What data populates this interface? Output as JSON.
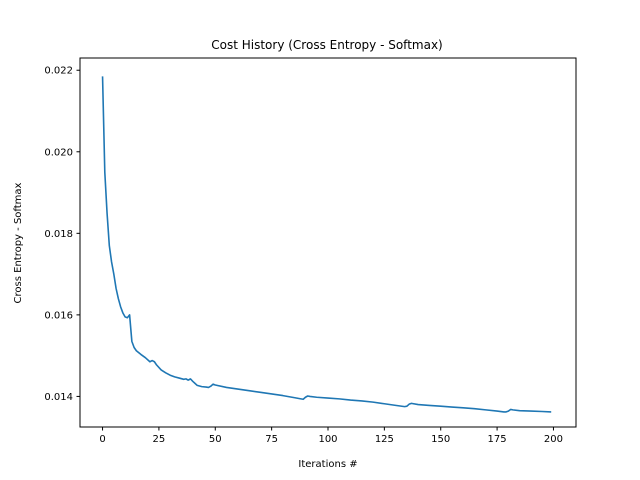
{
  "chart_data": {
    "type": "line",
    "title": "Cost History (Cross Entropy - Softmax)",
    "xlabel": "Iterations #",
    "ylabel": "Cross Entropy - Softmax",
    "xlim": [
      -10,
      210
    ],
    "ylim": [
      0.01325,
      0.0223
    ],
    "grid": false,
    "x_ticks": [
      0,
      25,
      50,
      75,
      100,
      125,
      150,
      175,
      200
    ],
    "y_ticks": [
      0.014,
      0.016,
      0.018,
      0.02,
      0.022
    ],
    "x_tick_labels": [
      "0",
      "25",
      "50",
      "75",
      "100",
      "125",
      "150",
      "175",
      "200"
    ],
    "y_tick_labels": [
      "0.014",
      "0.016",
      "0.018",
      "0.020",
      "0.022"
    ],
    "series": [
      {
        "color": "#1f77b4",
        "x": [
          0,
          1,
          2,
          3,
          4,
          5,
          6,
          7,
          8,
          9,
          10,
          11,
          12,
          13,
          14,
          15,
          17,
          19,
          21,
          22,
          23,
          24,
          26,
          28,
          30,
          32,
          34,
          36,
          37,
          38,
          39,
          40,
          41,
          42,
          44,
          46,
          47,
          48,
          49,
          50,
          55,
          60,
          65,
          70,
          75,
          80,
          85,
          88,
          89,
          90,
          91,
          92,
          95,
          100,
          105,
          110,
          115,
          120,
          125,
          130,
          134,
          135,
          136,
          137,
          140,
          145,
          150,
          155,
          160,
          165,
          170,
          175,
          178,
          179,
          180,
          181,
          182,
          185,
          190,
          195,
          199
        ],
        "y": [
          0.02185,
          0.0195,
          0.0185,
          0.0177,
          0.0173,
          0.017,
          0.01665,
          0.0164,
          0.0162,
          0.01605,
          0.01595,
          0.01593,
          0.016,
          0.01535,
          0.0152,
          0.01512,
          0.01503,
          0.01495,
          0.01485,
          0.01488,
          0.01485,
          0.01477,
          0.01465,
          0.01458,
          0.01452,
          0.01448,
          0.01445,
          0.01442,
          0.01443,
          0.0144,
          0.01443,
          0.01437,
          0.01432,
          0.01427,
          0.01424,
          0.01423,
          0.01422,
          0.01425,
          0.0143,
          0.01428,
          0.01422,
          0.01418,
          0.01414,
          0.0141,
          0.01406,
          0.01402,
          0.01397,
          0.01394,
          0.01393,
          0.01398,
          0.01401,
          0.014,
          0.01398,
          0.01396,
          0.01394,
          0.01391,
          0.01389,
          0.01386,
          0.01382,
          0.01378,
          0.01375,
          0.01376,
          0.01381,
          0.01383,
          0.0138,
          0.01378,
          0.01376,
          0.01374,
          0.01372,
          0.0137,
          0.01367,
          0.01364,
          0.01362,
          0.01362,
          0.01364,
          0.01368,
          0.01367,
          0.01365,
          0.01364,
          0.01363,
          0.01362
        ]
      }
    ]
  }
}
